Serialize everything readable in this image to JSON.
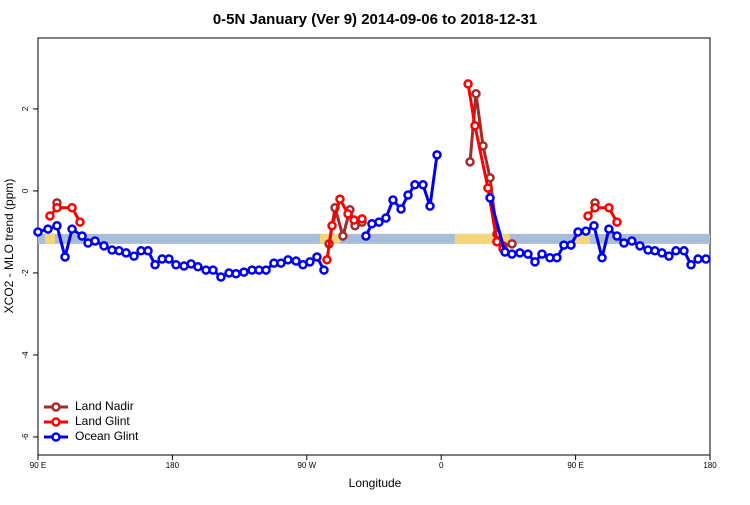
{
  "chart_data": {
    "type": "line",
    "title": "0-5N January (Ver 9)   2014-09-06 to 2018-12-31",
    "xlabel": "Longitude",
    "ylabel": "XCO2 - MLO trend (ppm)",
    "xlim": [
      90,
      540
    ],
    "ylim": [
      -6.44,
      3.73
    ],
    "xticks": [
      {
        "value": 90,
        "label": "90 E"
      },
      {
        "value": 180,
        "label": "180"
      },
      {
        "value": 270,
        "label": "90 W"
      },
      {
        "value": 360,
        "label": "0"
      },
      {
        "value": 450,
        "label": "90 E"
      },
      {
        "value": 540,
        "label": "180"
      }
    ],
    "yticks": [
      -6,
      -4,
      -2,
      0,
      2
    ],
    "legend": "bottom-left",
    "surface": {
      "y": -1.17,
      "color": "#a9bcd8",
      "land_color": "#f5d57a",
      "land_segments": [
        [
          94.7,
          101.4
        ],
        [
          278.8,
          292.2
        ],
        [
          369.2,
          406
        ],
        [
          449.6,
          459.6
        ]
      ]
    },
    "series": [
      {
        "name": "Land Nadir",
        "color": "#a52a2a",
        "x": [
          102.7,
          null,
          284.9,
          288.9,
          294.2,
          298.9,
          302.3,
          307,
          null,
          379.3,
          383.3,
          388,
          392.7,
          397.3,
          401.4,
          407.4,
          null,
          463
        ],
        "values": [
          -0.29,
          null,
          -1.29,
          -0.41,
          -1.1,
          -0.46,
          -0.85,
          -0.76,
          null,
          0.71,
          2.37,
          1.1,
          0.32,
          -1.05,
          -1.34,
          -1.29,
          null,
          -0.29
        ]
      },
      {
        "name": "Land Glint",
        "color": "#ff0000",
        "x": [
          98,
          102.7,
          112.8,
          118.1,
          null,
          283.5,
          286.9,
          292.2,
          297.6,
          301.6,
          307,
          null,
          378,
          382.6,
          391.3,
          397.3,
          401.4,
          null,
          458.3,
          463,
          472.3,
          477.7
        ],
        "values": [
          -0.61,
          -0.41,
          -0.41,
          -0.76,
          null,
          -1.68,
          -0.85,
          -0.2,
          -0.56,
          -0.71,
          -0.68,
          null,
          2.61,
          1.59,
          0.07,
          -1.24,
          -1.41,
          null,
          -0.61,
          -0.41,
          -0.41,
          -0.76
        ]
      },
      {
        "name": "Ocean Glint",
        "color": "#0000ee",
        "x": [
          90,
          96.7,
          102.7,
          108.1,
          112.8,
          119.5,
          123.5,
          128.2,
          134.2,
          139.6,
          144.3,
          149,
          154.3,
          159,
          163.7,
          168.4,
          173.1,
          177.7,
          182.4,
          187.8,
          192.5,
          197.1,
          202.5,
          207.2,
          212.5,
          217.9,
          222.6,
          227.9,
          233.3,
          238,
          242.7,
          248,
          252.7,
          257.4,
          262.8,
          267.4,
          272.1,
          276.8,
          281.5,
          null,
          309.6,
          313.6,
          318.3,
          323,
          327.7,
          333.1,
          337.8,
          342.4,
          347.8,
          352.5,
          357.2,
          null,
          392.7,
          402.7,
          407.4,
          412.7,
          418.1,
          422.8,
          427.5,
          432.8,
          437.5,
          442.2,
          446.9,
          451.6,
          456.9,
          462.3,
          467.7,
          472.3,
          477.7,
          482.4,
          487.7,
          493.1,
          498.5,
          503.1,
          507.8,
          512.5,
          517.2,
          522.6,
          527.3,
          532,
          537.3
        ],
        "values": [
          -1.0,
          -0.93,
          -0.85,
          -1.61,
          -0.93,
          -1.1,
          -1.27,
          -1.22,
          -1.34,
          -1.44,
          -1.46,
          -1.51,
          -1.59,
          -1.46,
          -1.46,
          -1.8,
          -1.66,
          -1.66,
          -1.8,
          -1.83,
          -1.78,
          -1.85,
          -1.93,
          -1.93,
          -2.1,
          -2.0,
          -2.02,
          -1.98,
          -1.93,
          -1.93,
          -1.93,
          -1.76,
          -1.76,
          -1.68,
          -1.71,
          -1.8,
          -1.73,
          -1.61,
          -1.93,
          null,
          -1.1,
          -0.8,
          -0.76,
          -0.66,
          -0.22,
          -0.44,
          -0.1,
          0.15,
          0.15,
          -0.37,
          0.88,
          null,
          -0.17,
          -1.49,
          -1.54,
          -1.51,
          -1.54,
          -1.73,
          -1.54,
          -1.63,
          -1.63,
          -1.32,
          -1.32,
          -1.0,
          -0.98,
          -0.85,
          -1.63,
          -0.93,
          -1.1,
          -1.27,
          -1.22,
          -1.34,
          -1.44,
          -1.46,
          -1.51,
          -1.59,
          -1.46,
          -1.46,
          -1.8,
          -1.66,
          -1.66
        ]
      }
    ]
  }
}
